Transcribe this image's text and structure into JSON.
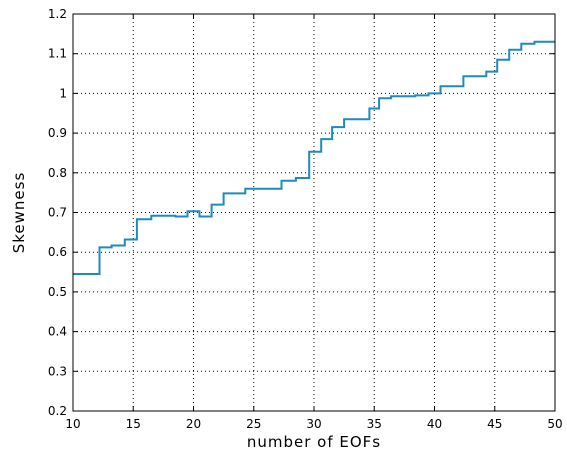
{
  "chart_data": {
    "type": "line",
    "title": "",
    "xlabel": "number  of  EOFs",
    "ylabel": "Skewness",
    "xlim": [
      10,
      50
    ],
    "ylim": [
      0.2,
      1.2
    ],
    "xticks": [
      10,
      15,
      20,
      25,
      30,
      35,
      40,
      45,
      50
    ],
    "yticks": [
      0.2,
      0.3,
      0.4,
      0.5,
      0.6,
      0.7,
      0.8,
      0.9,
      1,
      1.1,
      1.2
    ],
    "ytick_labels": [
      "0.2",
      "0.3",
      "0.4",
      "0.5",
      "0.6",
      "0.7",
      "0.8",
      "0.9",
      "1",
      "1.1",
      "1.2"
    ],
    "grid": true,
    "line_color": "#1f8ac0",
    "series": [
      {
        "step": true,
        "x": [
          10,
          12.2,
          13.2,
          14.3,
          15.3,
          16.5,
          18.5,
          19.5,
          20.5,
          21.5,
          22.5,
          24.3,
          25.5,
          27.3,
          28.5,
          29.6,
          30.6,
          31.5,
          32.5,
          34.6,
          35.4,
          36.4,
          38.4,
          39.5,
          40.5,
          42.4,
          44.3,
          45.2,
          46.2,
          47.2,
          48.3,
          49.8
        ],
        "y": [
          0.545,
          0.612,
          0.617,
          0.632,
          0.683,
          0.692,
          0.69,
          0.703,
          0.69,
          0.72,
          0.748,
          0.76,
          0.76,
          0.78,
          0.787,
          0.853,
          0.885,
          0.915,
          0.935,
          0.962,
          0.988,
          0.993,
          0.995,
          1.0,
          1.018,
          1.043,
          1.055,
          1.085,
          1.11,
          1.125,
          1.13,
          1.13
        ]
      }
    ]
  }
}
